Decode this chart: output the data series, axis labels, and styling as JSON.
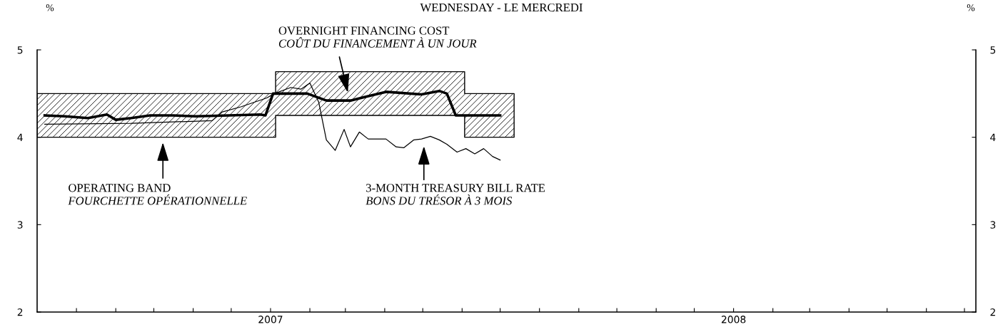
{
  "chart_data": {
    "type": "line",
    "title": "WEDNESDAY - LE MERCREDI",
    "ylabel": "%",
    "y2label": "%",
    "xlim": [
      "2006-07-01",
      "2008-07-10"
    ],
    "xticks": [
      {
        "value": "2006-08-01",
        "label": null
      },
      {
        "value": "2006-09-01",
        "label": null
      },
      {
        "value": "2006-10-01",
        "label": null
      },
      {
        "value": "2006-11-01",
        "label": null
      },
      {
        "value": "2006-12-01",
        "label": null
      },
      {
        "value": "2007-01-01",
        "label": "2007"
      },
      {
        "value": "2007-02-01",
        "label": null
      },
      {
        "value": "2007-03-01",
        "label": null
      },
      {
        "value": "2007-04-01",
        "label": null
      },
      {
        "value": "2007-05-01",
        "label": null
      },
      {
        "value": "2007-06-01",
        "label": null
      },
      {
        "value": "2007-07-01",
        "label": null
      },
      {
        "value": "2007-08-01",
        "label": null
      },
      {
        "value": "2007-09-01",
        "label": null
      },
      {
        "value": "2007-10-01",
        "label": null
      },
      {
        "value": "2007-11-01",
        "label": null
      },
      {
        "value": "2007-12-01",
        "label": null
      },
      {
        "value": "2008-01-01",
        "label": "2008"
      },
      {
        "value": "2008-02-01",
        "label": null
      },
      {
        "value": "2008-03-01",
        "label": null
      },
      {
        "value": "2008-04-01",
        "label": null
      },
      {
        "value": "2008-05-01",
        "label": null
      },
      {
        "value": "2008-06-01",
        "label": null
      },
      {
        "value": "2008-07-01",
        "label": null
      }
    ],
    "ylim": [
      2,
      5
    ],
    "yticks": [
      2,
      3,
      4,
      5
    ],
    "y2lim": [
      2,
      5
    ],
    "y2ticks": [
      2,
      3,
      4,
      5
    ],
    "grid": false,
    "legend": false,
    "marker": "none",
    "line_style": "solid",
    "series": [
      {
        "type": "area",
        "color": "#000000",
        "x": [
          "2006-07-01",
          "2007-01-05",
          "2007-01-05",
          "2007-06-03",
          "2007-06-03",
          "2007-07-12"
        ],
        "values": [
          null,
          null,
          null,
          null,
          null,
          null
        ],
        "lower": [
          4.0,
          4.0,
          4.25,
          4.25,
          4.0,
          4.0
        ],
        "upper": [
          4.5,
          4.5,
          4.75,
          4.75,
          4.5,
          4.5
        ]
      },
      {
        "color": "#000000",
        "x": [
          "2006-07-07",
          "2006-07-23",
          "2006-08-10",
          "2006-08-25",
          "2006-09-01",
          "2006-09-13",
          "2006-09-28",
          "2006-10-16",
          "2006-11-03",
          "2006-11-29",
          "2006-12-24",
          "2006-12-28",
          "2007-01-03",
          "2007-01-30",
          "2007-02-14",
          "2007-03-05",
          "2007-04-02",
          "2007-04-30",
          "2007-05-14",
          "2007-05-20",
          "2007-05-27",
          "2007-06-16",
          "2007-07-01"
        ],
        "values": [
          4.25,
          4.24,
          4.22,
          4.26,
          4.2,
          4.22,
          4.25,
          4.25,
          4.24,
          4.25,
          4.26,
          4.25,
          4.5,
          4.5,
          4.42,
          4.42,
          4.52,
          4.49,
          4.53,
          4.5,
          4.25,
          4.25,
          4.25
        ]
      },
      {
        "color": "#000000",
        "x": [
          "2006-07-07",
          "2006-09-13",
          "2006-11-16",
          "2006-11-24",
          "2006-12-09",
          "2006-12-29",
          "2007-01-04",
          "2007-01-17",
          "2007-01-25",
          "2007-02-01",
          "2007-02-08",
          "2007-02-14",
          "2007-02-21",
          "2007-02-28",
          "2007-03-05",
          "2007-03-12",
          "2007-03-19",
          "2007-04-02",
          "2007-04-10",
          "2007-04-16",
          "2007-04-24",
          "2007-04-30",
          "2007-05-07",
          "2007-05-14",
          "2007-05-20",
          "2007-05-28",
          "2007-06-04",
          "2007-06-11",
          "2007-06-18",
          "2007-06-25",
          "2007-07-01"
        ],
        "values": [
          4.15,
          4.16,
          4.19,
          4.29,
          4.35,
          4.45,
          4.5,
          4.57,
          4.55,
          4.62,
          4.4,
          3.97,
          3.85,
          4.09,
          3.89,
          4.06,
          3.98,
          3.98,
          3.89,
          3.88,
          3.97,
          3.98,
          4.01,
          3.97,
          3.92,
          3.83,
          3.87,
          3.81,
          3.87,
          3.78,
          3.74
        ]
      }
    ],
    "annotations": [
      "OPERATING BAND\nFOURCHETTE OPÉRATIONNELLE",
      "OVERNIGHT FINANCING COST\nCOÛT DU FINANCEMENT À UN JOUR",
      "3-MONTH TREASURY BILL RATE\nBONS DU TRÉSOR À 3 MOIS"
    ]
  }
}
